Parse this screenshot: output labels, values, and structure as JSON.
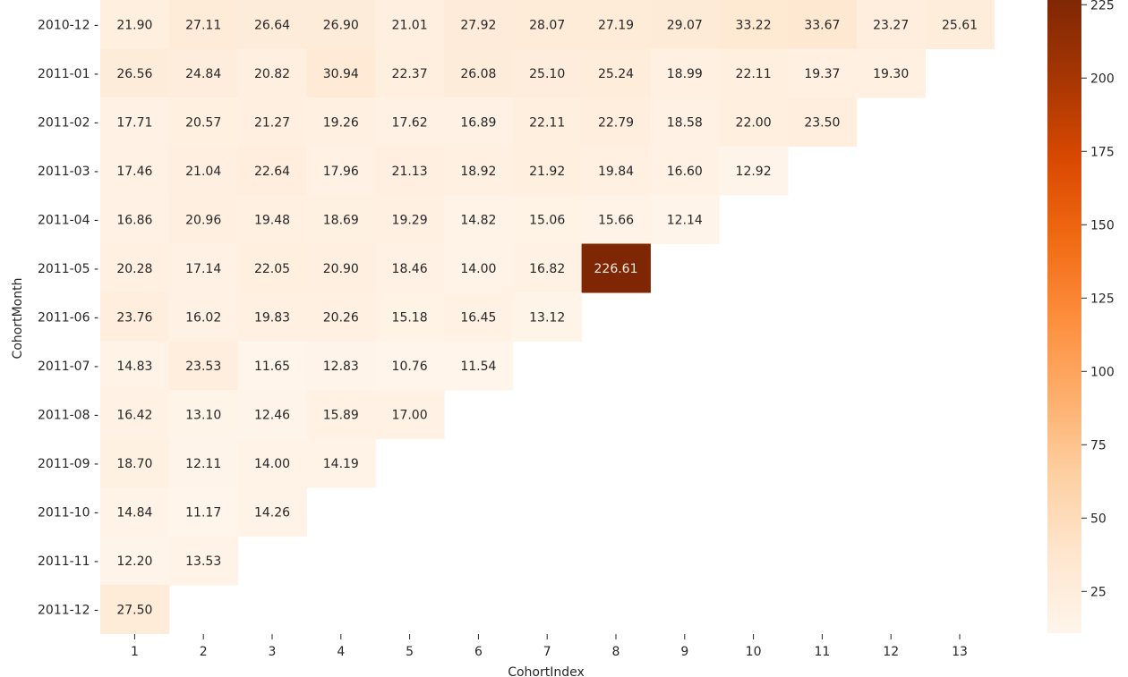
{
  "chart_data": {
    "type": "heatmap",
    "xlabel": "CohortIndex",
    "ylabel": "CohortMonth",
    "x_categories": [
      "1",
      "2",
      "3",
      "4",
      "5",
      "6",
      "7",
      "8",
      "9",
      "10",
      "11",
      "12",
      "13"
    ],
    "y_categories": [
      "2010-12",
      "2011-01",
      "2011-02",
      "2011-03",
      "2011-04",
      "2011-05",
      "2011-06",
      "2011-07",
      "2011-08",
      "2011-09",
      "2011-10",
      "2011-11",
      "2011-12"
    ],
    "values": [
      [
        "21.90",
        "27.11",
        "26.64",
        "26.90",
        "21.01",
        "27.92",
        "28.07",
        "27.19",
        "29.07",
        "33.22",
        "33.67",
        "23.27",
        "25.61"
      ],
      [
        "26.56",
        "24.84",
        "20.82",
        "30.94",
        "22.37",
        "26.08",
        "25.10",
        "25.24",
        "18.99",
        "22.11",
        "19.37",
        "19.30"
      ],
      [
        "17.71",
        "20.57",
        "21.27",
        "19.26",
        "17.62",
        "16.89",
        "22.11",
        "22.79",
        "18.58",
        "22.00",
        "23.50"
      ],
      [
        "17.46",
        "21.04",
        "22.64",
        "17.96",
        "21.13",
        "18.92",
        "21.92",
        "19.84",
        "16.60",
        "12.92"
      ],
      [
        "16.86",
        "20.96",
        "19.48",
        "18.69",
        "19.29",
        "14.82",
        "15.06",
        "15.66",
        "12.14"
      ],
      [
        "20.28",
        "17.14",
        "22.05",
        "20.90",
        "18.46",
        "14.00",
        "16.82",
        "226.61"
      ],
      [
        "23.76",
        "16.02",
        "19.83",
        "20.26",
        "15.18",
        "16.45",
        "13.12"
      ],
      [
        "14.83",
        "23.53",
        "11.65",
        "12.83",
        "10.76",
        "11.54"
      ],
      [
        "16.42",
        "13.10",
        "12.46",
        "15.89",
        "17.00"
      ],
      [
        "18.70",
        "12.11",
        "14.00",
        "14.19"
      ],
      [
        "14.84",
        "11.17",
        "14.26"
      ],
      [
        "12.20",
        "13.53"
      ],
      [
        "27.50"
      ]
    ],
    "colorbar": {
      "min": 10.76,
      "max": 226.61,
      "ticks": [
        "25",
        "50",
        "75",
        "100",
        "125",
        "150",
        "175",
        "200",
        "225"
      ],
      "colormap": "Oranges"
    },
    "annotations": true,
    "grid": false
  }
}
